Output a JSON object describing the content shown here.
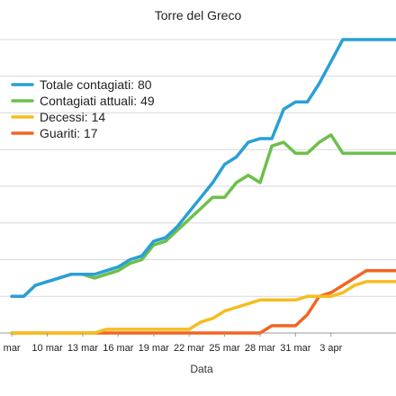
{
  "chart_data": {
    "type": "line",
    "title": "Torre del Greco",
    "xlabel": "Data",
    "ylabel": "",
    "x_range": [
      6,
      39.5
    ],
    "ylim": [
      0,
      80
    ],
    "y_gridlines": [
      0,
      10,
      20,
      30,
      40,
      50,
      60,
      70,
      80
    ],
    "grid": true,
    "legend_position": "top-left",
    "x_ticks": [
      {
        "x": 7,
        "label": "mar"
      },
      {
        "x": 10,
        "label": "10 mar"
      },
      {
        "x": 13,
        "label": "13 mar"
      },
      {
        "x": 16,
        "label": "16 mar"
      },
      {
        "x": 19,
        "label": "19 mar"
      },
      {
        "x": 22,
        "label": "22 mar"
      },
      {
        "x": 25,
        "label": "25 mar"
      },
      {
        "x": 28,
        "label": "28 mar"
      },
      {
        "x": 31,
        "label": "31 mar"
      },
      {
        "x": 34,
        "label": "3 apr"
      }
    ],
    "x": [
      7,
      8,
      9,
      10,
      11,
      12,
      13,
      14,
      15,
      16,
      17,
      18,
      19,
      20,
      21,
      22,
      23,
      24,
      25,
      26,
      27,
      28,
      29,
      30,
      31,
      32,
      33,
      34,
      35,
      36,
      37,
      38,
      39
    ],
    "series": [
      {
        "name": "Totale contagiati: 80",
        "color": "#2a9fd6",
        "values": [
          10,
          10,
          13,
          14,
          15,
          16,
          16,
          16,
          17,
          18,
          20,
          21,
          25,
          26,
          29,
          33,
          37,
          41,
          46,
          48,
          52,
          53,
          53,
          61,
          63,
          63,
          68,
          74,
          80,
          80,
          80,
          80,
          80
        ]
      },
      {
        "name": "Contagiati attuali: 49",
        "color": "#6cc04a",
        "values": [
          10,
          10,
          13,
          14,
          15,
          16,
          16,
          15,
          16,
          17,
          19,
          20,
          24,
          25,
          28,
          31,
          34,
          37,
          37,
          41,
          43,
          41,
          51,
          52,
          49,
          49,
          52,
          54,
          49,
          49,
          49,
          49,
          49
        ]
      },
      {
        "name": "Decessi: 14",
        "color": "#f5bd1f",
        "values": [
          0,
          0,
          0,
          0,
          0,
          0,
          0,
          0,
          1,
          1,
          1,
          1,
          1,
          1,
          1,
          1,
          3,
          4,
          6,
          7,
          8,
          9,
          9,
          9,
          9,
          10,
          10,
          10,
          11,
          13,
          14,
          14,
          14
        ]
      },
      {
        "name": "Guariti: 17",
        "color": "#f26522",
        "values": [
          0,
          0,
          0,
          0,
          0,
          0,
          0,
          0,
          0,
          0,
          0,
          0,
          0,
          0,
          0,
          0,
          0,
          0,
          0,
          0,
          0,
          0,
          2,
          2,
          2,
          5,
          10,
          11,
          13,
          15,
          17,
          17,
          17
        ]
      }
    ]
  }
}
